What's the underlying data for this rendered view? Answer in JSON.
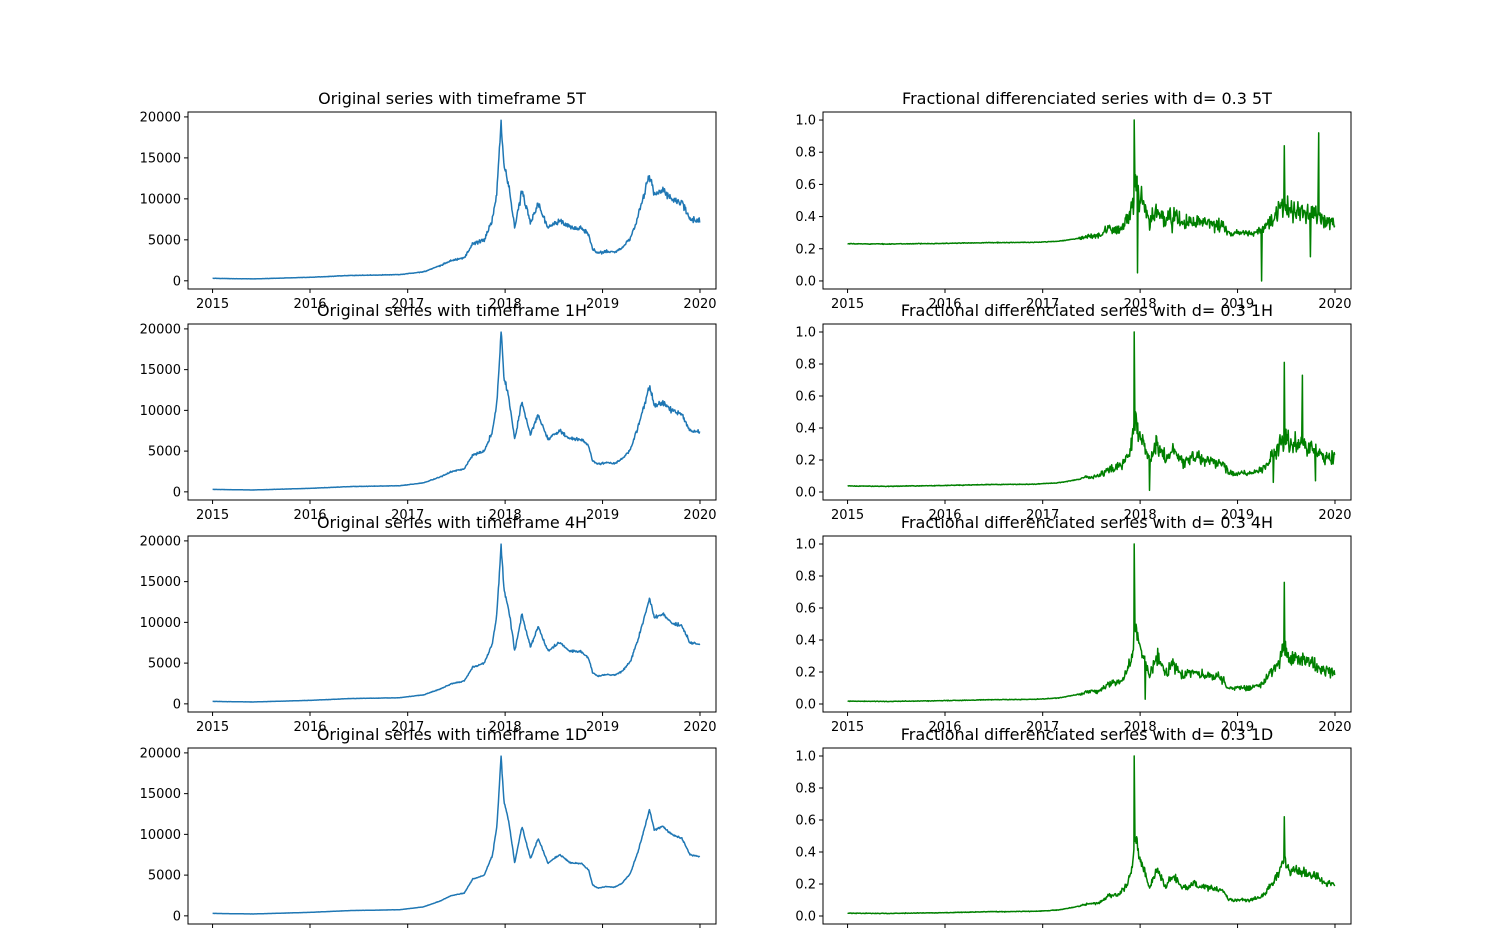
{
  "chart_data": [
    {
      "type": "line",
      "title": "Original series with timeframe 5T",
      "xlabel": "",
      "ylabel": "",
      "x_ticks": [
        "2015",
        "2016",
        "2017",
        "2018",
        "2019",
        "2020"
      ],
      "y_ticks": [
        "0",
        "5000",
        "10000",
        "15000",
        "20000"
      ],
      "xlim": [
        "2014-10-01",
        "2020-03-01"
      ],
      "ylim": [
        -1000,
        20600
      ],
      "color": "#1f77b4",
      "series": [
        {
          "shape": "price",
          "scale": 1.0,
          "spike": 0.12,
          "x": [],
          "values": [],
          "values_note": "see shared_price_path"
        }
      ]
    },
    {
      "type": "line",
      "title": "Fractional differenciated series with d= 0.3  5T",
      "xlabel": "",
      "ylabel": "",
      "x_ticks": [
        "2015",
        "2016",
        "2017",
        "2018",
        "2019",
        "2020"
      ],
      "y_ticks": [
        "0.0",
        "0.2",
        "0.4",
        "0.6",
        "0.8",
        "1.0"
      ],
      "xlim": [
        "2014-10-01",
        "2020-03-01"
      ],
      "ylim": [
        -0.05,
        1.05
      ],
      "color": "#008000",
      "series": [
        {
          "shape": "fracdiff",
          "base": 0.225,
          "scale": 0.047,
          "noise": 0.12,
          "spikes": [
            [
              "2017-12-22",
              0.05
            ],
            [
              "2018-05-01",
              0.3
            ],
            [
              "2019-04-01",
              0.0
            ],
            [
              "2019-10-01",
              0.15
            ],
            [
              "2019-11-01",
              0.92
            ],
            [
              "2019-06-25",
              0.84
            ],
            [
              "2017-12-10",
              1.0
            ]
          ]
        }
      ]
    },
    {
      "type": "line",
      "title": "Original series with timeframe 1H",
      "xlabel": "",
      "ylabel": "",
      "x_ticks": [
        "2015",
        "2016",
        "2017",
        "2018",
        "2019",
        "2020"
      ],
      "y_ticks": [
        "0",
        "5000",
        "10000",
        "15000",
        "20000"
      ],
      "xlim": [
        "2014-10-01",
        "2020-03-01"
      ],
      "ylim": [
        -1000,
        20600
      ],
      "color": "#1f77b4",
      "series": [
        {
          "shape": "price",
          "scale": 1.0,
          "spike": 0.08
        }
      ]
    },
    {
      "type": "line",
      "title": "Fractional differenciated series with d= 0.3  1H",
      "xlabel": "",
      "ylabel": "",
      "x_ticks": [
        "2015",
        "2016",
        "2017",
        "2018",
        "2019",
        "2020"
      ],
      "y_ticks": [
        "0.0",
        "0.2",
        "0.4",
        "0.6",
        "0.8",
        "1.0"
      ],
      "xlim": [
        "2014-10-01",
        "2020-03-01"
      ],
      "ylim": [
        -0.05,
        1.05
      ],
      "color": "#008000",
      "series": [
        {
          "shape": "fracdiff",
          "base": 0.03,
          "scale": 0.05,
          "noise": 0.1,
          "spikes": [
            [
              "2018-02-05",
              0.01
            ],
            [
              "2019-05-15",
              0.06
            ],
            [
              "2019-10-20",
              0.07
            ],
            [
              "2019-09-01",
              0.73
            ],
            [
              "2019-06-25",
              0.81
            ],
            [
              "2017-12-10",
              1.0
            ]
          ]
        }
      ]
    },
    {
      "type": "line",
      "title": "Original series with timeframe 4H",
      "xlabel": "",
      "ylabel": "",
      "x_ticks": [
        "2015",
        "2016",
        "2017",
        "2018",
        "2019",
        "2020"
      ],
      "y_ticks": [
        "0",
        "5000",
        "10000",
        "15000",
        "20000"
      ],
      "xlim": [
        "2014-10-01",
        "2020-03-01"
      ],
      "ylim": [
        -1000,
        20600
      ],
      "color": "#1f77b4",
      "series": [
        {
          "shape": "price",
          "scale": 1.0,
          "spike": 0.06
        }
      ]
    },
    {
      "type": "line",
      "title": "Fractional differenciated series with d= 0.3  4H",
      "xlabel": "",
      "ylabel": "",
      "x_ticks": [
        "2015",
        "2016",
        "2017",
        "2018",
        "2019",
        "2020"
      ],
      "y_ticks": [
        "0.0",
        "0.2",
        "0.4",
        "0.6",
        "0.8",
        "1.0"
      ],
      "xlim": [
        "2014-10-01",
        "2020-03-01"
      ],
      "ylim": [
        -0.05,
        1.05
      ],
      "color": "#008000",
      "series": [
        {
          "shape": "fracdiff",
          "base": 0.01,
          "scale": 0.04,
          "noise": 0.08,
          "spikes": [
            [
              "2018-01-20",
              0.03
            ],
            [
              "2019-06-25",
              0.76
            ],
            [
              "2017-12-10",
              1.0
            ]
          ]
        }
      ]
    },
    {
      "type": "line",
      "title": "Original series with timeframe 1D",
      "xlabel": "",
      "ylabel": "",
      "x_ticks": [],
      "y_ticks": [
        "0",
        "5000",
        "10000",
        "15000",
        "20000"
      ],
      "xlim": [
        "2014-10-01",
        "2020-03-01"
      ],
      "ylim": [
        -1000,
        20600
      ],
      "color": "#1f77b4",
      "series": [
        {
          "shape": "price",
          "scale": 1.0,
          "spike": 0.03
        }
      ]
    },
    {
      "type": "line",
      "title": "Fractional differenciated series with d= 0.3  1D",
      "xlabel": "",
      "ylabel": "",
      "x_ticks": [],
      "y_ticks": [
        "0.0",
        "0.2",
        "0.4",
        "0.6",
        "0.8",
        "1.0"
      ],
      "xlim": [
        "2014-10-01",
        "2020-03-01"
      ],
      "ylim": [
        -0.05,
        1.05
      ],
      "color": "#008000",
      "series": [
        {
          "shape": "fracdiff",
          "base": 0.01,
          "scale": 0.04,
          "noise": 0.05,
          "spikes": [
            [
              "2019-06-25",
              0.62
            ],
            [
              "2017-12-10",
              1.0
            ]
          ]
        }
      ]
    }
  ],
  "shared_price_path": {
    "dates": [
      "2015-01-01",
      "2015-06-01",
      "2016-01-01",
      "2016-06-01",
      "2016-12-01",
      "2017-03-01",
      "2017-05-01",
      "2017-06-15",
      "2017-08-01",
      "2017-09-01",
      "2017-10-15",
      "2017-11-15",
      "2017-12-01",
      "2017-12-17",
      "2017-12-28",
      "2018-01-15",
      "2018-02-06",
      "2018-03-05",
      "2018-04-06",
      "2018-05-05",
      "2018-06-10",
      "2018-07-25",
      "2018-09-01",
      "2018-10-15",
      "2018-11-10",
      "2018-11-25",
      "2018-12-15",
      "2019-01-15",
      "2019-02-15",
      "2019-03-15",
      "2019-04-15",
      "2019-05-15",
      "2019-06-26",
      "2019-07-15",
      "2019-08-15",
      "2019-09-15",
      "2019-10-25",
      "2019-11-25",
      "2019-12-31"
    ],
    "values": [
      300,
      230,
      430,
      650,
      750,
      1100,
      1800,
      2500,
      2800,
      4500,
      5000,
      7500,
      11000,
      19500,
      14000,
      11500,
      6500,
      11000,
      7000,
      9500,
      6500,
      7500,
      6500,
      6400,
      5600,
      3800,
      3400,
      3600,
      3500,
      4000,
      5200,
      8000,
      13000,
      10500,
      11000,
      10000,
      9500,
      7500,
      7300
    ],
    "start": "2015-01-01",
    "end": "2019-12-31"
  }
}
